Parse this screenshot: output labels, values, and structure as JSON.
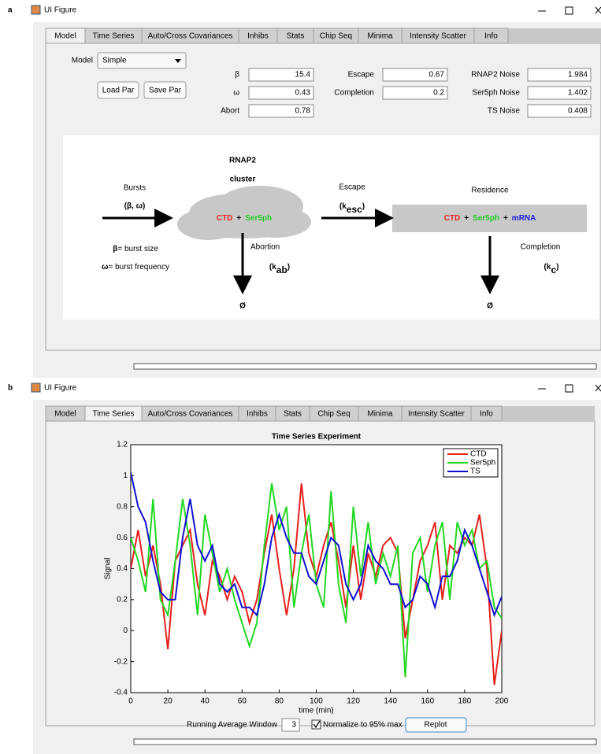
{
  "panel_a": {
    "label": "a",
    "window_title": "UI Figure",
    "tabs": [
      "Model",
      "Time Series",
      "Auto/Cross Covariances",
      "Inhibs",
      "Stats",
      "Chip Seq",
      "Minima",
      "Intensity Scatter",
      "Info"
    ],
    "model_label": "Model",
    "model_choice": "Simple",
    "buttons": [
      "Load Par",
      "Save Par"
    ],
    "params": [
      {
        "label": "β",
        "value": 15.4
      },
      {
        "label": "ω",
        "value": 0.43
      },
      {
        "label": "Abort",
        "value": 0.78
      },
      {
        "label": "Escape",
        "value": 0.67
      },
      {
        "label": "Completion",
        "value": 0.2
      },
      {
        "label": "RNAP2 Noise",
        "value": 1.984
      },
      {
        "label": "Ser5ph Noise",
        "value": 1.402
      },
      {
        "label": "TS Noise",
        "value": 0.408
      }
    ],
    "diagram": {
      "rnap2": "RNAP2",
      "cluster": "cluster",
      "bursts": "Bursts",
      "bursts_params": "(β, ω)",
      "cluster_species": [
        "CTD",
        "+",
        "Ser5ph"
      ],
      "escape": "Escape",
      "escape_rate": [
        "(k",
        "esc",
        ")"
      ],
      "residence": "Residence",
      "residence_species": [
        "CTD",
        "+",
        "Ser5ph",
        "+",
        "mRNA"
      ],
      "burst_size": [
        "β",
        "= burst size"
      ],
      "burst_frequency": [
        "ω",
        "= burst frequency"
      ],
      "abortion": "Abortion",
      "abortion_rate": [
        "(k",
        "ab",
        ")"
      ],
      "completion": "Completion",
      "completion_rate": [
        "(k",
        "c",
        ")"
      ],
      "null_products": [
        "Ø",
        "Ø"
      ]
    }
  },
  "panel_b": {
    "label": "b",
    "window_title": "UI Figure",
    "tabs": [
      "Model",
      "Time Series",
      "Auto/Cross Covariances",
      "Inhibs",
      "Stats",
      "Chip Seq",
      "Minima",
      "Intensity Scatter",
      "Info"
    ],
    "running_average_label": "Running Average Window",
    "running_average_window": 3,
    "normalize_label": "Normalize to 95% max",
    "replot_button": "Replot"
  },
  "chart_data": {
    "type": "line",
    "title": "Time Series Experiment",
    "xlabel": "time (min)",
    "ylabel": "Signal",
    "xlim": [
      0,
      200
    ],
    "xticks": [
      0,
      20,
      40,
      60,
      80,
      100,
      120,
      140,
      160,
      180,
      200
    ],
    "ylim": [
      -0.4,
      1.2
    ],
    "yticks": [
      -0.4,
      -0.2,
      0,
      0.2,
      0.4,
      0.6,
      0.8,
      1,
      1.2
    ],
    "legend": "upper right",
    "x": [
      0,
      4,
      8,
      12,
      16,
      20,
      24,
      28,
      32,
      36,
      40,
      44,
      48,
      52,
      56,
      60,
      64,
      68,
      72,
      76,
      80,
      84,
      88,
      92,
      96,
      100,
      104,
      108,
      112,
      116,
      120,
      124,
      128,
      132,
      136,
      140,
      144,
      148,
      152,
      156,
      160,
      164,
      168,
      172,
      176,
      180,
      184,
      188,
      192,
      196,
      200
    ],
    "series": [
      {
        "name": "CTD",
        "color": "#e8201c",
        "values": [
          0.4,
          0.65,
          0.35,
          0.55,
          0.3,
          -0.12,
          0.45,
          0.55,
          0.65,
          0.3,
          0.1,
          0.45,
          0.35,
          0.2,
          0.35,
          0.25,
          0.05,
          0.2,
          0.5,
          0.75,
          0.4,
          0.1,
          0.4,
          0.95,
          0.5,
          0.35,
          0.55,
          0.7,
          0.45,
          0.15,
          0.55,
          0.2,
          0.5,
          0.35,
          0.55,
          0.6,
          0.5,
          -0.05,
          0.2,
          0.45,
          0.55,
          0.7,
          0.2,
          0.55,
          0.5,
          0.6,
          0.55,
          0.75,
          0.4,
          -0.35,
          0.0
        ]
      },
      {
        "name": "Ser5ph",
        "color": "#22d822",
        "values": [
          0.6,
          0.45,
          0.25,
          0.85,
          0.2,
          0.1,
          0.45,
          0.85,
          0.55,
          0.1,
          0.75,
          0.5,
          0.25,
          0.4,
          0.2,
          0.05,
          -0.1,
          0.05,
          0.55,
          0.95,
          0.65,
          0.8,
          0.15,
          0.5,
          0.75,
          0.3,
          0.15,
          0.9,
          0.3,
          0.05,
          0.8,
          0.35,
          0.7,
          0.3,
          0.5,
          0.35,
          0.55,
          -0.3,
          0.5,
          0.6,
          0.25,
          0.55,
          0.7,
          0.2,
          0.7,
          0.55,
          0.65,
          0.4,
          0.45,
          0.15,
          0.08
        ]
      },
      {
        "name": "TS",
        "color": "#1010d0",
        "values": [
          1.02,
          0.8,
          0.7,
          0.45,
          0.25,
          0.2,
          0.2,
          0.6,
          0.85,
          0.55,
          0.45,
          0.55,
          0.3,
          0.25,
          0.3,
          0.15,
          0.15,
          0.1,
          0.3,
          0.6,
          0.75,
          0.6,
          0.5,
          0.5,
          0.35,
          0.3,
          0.45,
          0.6,
          0.55,
          0.3,
          0.2,
          0.3,
          0.55,
          0.45,
          0.4,
          0.3,
          0.3,
          0.15,
          0.2,
          0.35,
          0.3,
          0.15,
          0.35,
          0.35,
          0.45,
          0.65,
          0.55,
          0.4,
          0.25,
          0.1,
          0.22
        ]
      }
    ]
  }
}
